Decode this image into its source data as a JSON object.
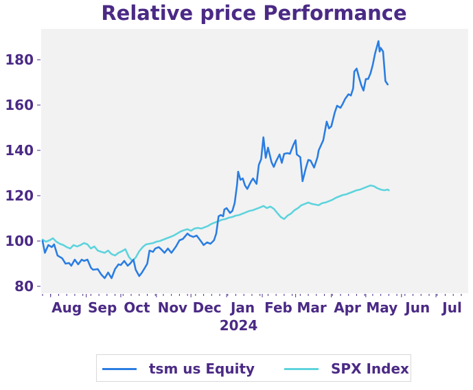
{
  "chart_data": {
    "type": "line",
    "title": "Relative price Performance",
    "xlabel": "",
    "ylabel": "",
    "ylim": [
      78,
      193
    ],
    "yticks": [
      80,
      100,
      120,
      140,
      160,
      180
    ],
    "xlim": [
      "2023-07-25",
      "2024-07-29"
    ],
    "xtick_labels": [
      {
        "date": "2023-08-15",
        "label": "Aug"
      },
      {
        "date": "2023-09-15",
        "label": "Sep"
      },
      {
        "date": "2023-10-15",
        "label": "Oct"
      },
      {
        "date": "2023-11-15",
        "label": "Nov"
      },
      {
        "date": "2023-12-15",
        "label": "Dec"
      },
      {
        "date": "2024-01-15",
        "label": "Jan",
        "sublabel": "2024"
      },
      {
        "date": "2024-02-15",
        "label": "Feb"
      },
      {
        "date": "2024-03-15",
        "label": "Mar"
      },
      {
        "date": "2024-04-15",
        "label": "Apr"
      },
      {
        "date": "2024-05-15",
        "label": "May"
      },
      {
        "date": "2024-06-15",
        "label": "Jun"
      },
      {
        "date": "2024-07-15",
        "label": "Jul"
      }
    ],
    "grid": false,
    "legend": "bottom-center",
    "series": [
      {
        "name": "tsm us Equity",
        "color": "#2a7de1",
        "x_days": [
          0,
          2,
          5,
          8,
          10,
          13,
          17,
          20,
          23,
          25,
          28,
          31,
          34,
          36,
          39,
          42,
          44,
          48,
          51,
          54,
          57,
          60,
          63,
          66,
          68,
          71,
          74,
          76,
          79,
          81,
          84,
          86,
          89,
          91,
          93,
          96,
          98,
          101,
          103,
          106,
          109,
          112,
          116,
          119,
          122,
          126,
          128,
          131,
          134,
          138,
          140,
          143,
          146,
          149,
          151,
          153,
          155,
          157,
          158,
          160,
          163,
          165,
          167,
          169,
          170,
          172,
          174,
          176,
          178,
          181,
          183,
          186,
          188,
          190,
          192,
          194,
          196,
          199,
          201,
          203,
          206,
          208,
          210,
          213,
          215,
          218,
          220,
          221,
          224,
          226,
          229,
          231,
          233,
          236,
          239,
          240,
          244,
          247,
          249,
          251,
          254,
          256,
          259,
          261,
          263,
          266,
          268,
          270,
          271,
          273,
          275,
          277,
          279,
          281,
          283,
          285,
          287,
          289,
          290,
          292,
          293,
          294,
          296,
          298,
          300,
          301
        ],
        "values": [
          100,
          94.8,
          98.2,
          97.3,
          98.5,
          93.6,
          92.4,
          90,
          90.3,
          89.1,
          91.8,
          89.7,
          91.8,
          91.2,
          91.8,
          88.2,
          87.3,
          87.6,
          85.2,
          83.6,
          86.1,
          83.6,
          87.6,
          89.7,
          89.4,
          91.2,
          89.1,
          90,
          91.8,
          87.3,
          84.5,
          85.8,
          88.2,
          90,
          95.8,
          95.2,
          96.7,
          97.3,
          96.4,
          94.8,
          96.7,
          94.8,
          97.6,
          100.3,
          100.9,
          103.3,
          102.4,
          101.8,
          102.4,
          99.7,
          98.2,
          99.4,
          98.8,
          100.3,
          103.3,
          110.9,
          111.5,
          110.9,
          113.9,
          114.5,
          112.4,
          113.3,
          116.7,
          124.5,
          130.6,
          127,
          127.6,
          124.5,
          123,
          126.1,
          127.6,
          125.2,
          133.6,
          136.1,
          145.8,
          136.7,
          141.2,
          134.8,
          132.7,
          135.2,
          138.2,
          134.5,
          138.5,
          138.8,
          138.5,
          142.4,
          144.5,
          138.2,
          137,
          126.4,
          132.4,
          135.8,
          135.5,
          132.4,
          137,
          140,
          144.5,
          152.7,
          149.7,
          150.6,
          156.7,
          159.7,
          158.8,
          160.6,
          162.7,
          164.8,
          164.2,
          167.3,
          174.8,
          176.1,
          172.4,
          168.8,
          166.4,
          171.5,
          171.5,
          173.9,
          177.6,
          182.7,
          184.5,
          188.2,
          183.6,
          185.2,
          183.6,
          170.6,
          169.1
        ]
      },
      {
        "name": "SPX Index",
        "color": "#5dd3dd",
        "x_days": [
          0,
          3,
          6,
          9,
          12,
          15,
          18,
          21,
          24,
          27,
          30,
          33,
          36,
          39,
          42,
          45,
          48,
          51,
          54,
          57,
          60,
          63,
          66,
          69,
          72,
          75,
          78,
          81,
          84,
          87,
          90,
          93,
          96,
          99,
          102,
          105,
          108,
          111,
          114,
          117,
          120,
          123,
          126,
          129,
          132,
          135,
          138,
          141,
          144,
          147,
          150,
          153,
          156,
          159,
          162,
          165,
          168,
          171,
          174,
          177,
          180,
          183,
          186,
          189,
          192,
          195,
          198,
          201,
          204,
          207,
          210,
          213,
          216,
          219,
          222,
          225,
          228,
          231,
          234,
          237,
          240,
          243,
          246,
          249,
          252,
          255,
          258,
          261,
          264,
          267,
          270,
          273,
          276,
          279,
          282,
          285,
          288,
          291,
          294,
          297,
          300,
          301
        ],
        "values": [
          100.6,
          99.7,
          100.3,
          101.2,
          99.7,
          98.8,
          98.2,
          97.3,
          96.7,
          98.2,
          97.6,
          98.2,
          99.1,
          98.5,
          96.7,
          97.6,
          95.8,
          95.2,
          94.8,
          95.8,
          94.2,
          93.6,
          94.8,
          95.5,
          96.4,
          93,
          91.2,
          92.7,
          95.5,
          97.3,
          98.5,
          98.8,
          99.1,
          99.7,
          100,
          100.6,
          101.2,
          101.8,
          102.4,
          103.3,
          104.2,
          104.8,
          105.2,
          104.5,
          105.5,
          105.8,
          105.5,
          106.1,
          106.7,
          107.6,
          108.2,
          108.8,
          109.4,
          109.7,
          110.3,
          110.6,
          111.2,
          111.5,
          112.1,
          112.7,
          113.3,
          113.6,
          114.2,
          114.8,
          115.5,
          114.5,
          115.2,
          114.2,
          112.4,
          110.6,
          109.7,
          111.2,
          112.1,
          113.6,
          114.5,
          115.8,
          116.4,
          117,
          116.4,
          116.1,
          115.8,
          116.7,
          117,
          117.6,
          118.2,
          119.1,
          119.7,
          120.3,
          120.6,
          121.2,
          121.8,
          122.4,
          122.7,
          123.3,
          123.9,
          124.5,
          124.2,
          123.3,
          122.7,
          122.4,
          122.7,
          122.4
        ]
      }
    ]
  }
}
